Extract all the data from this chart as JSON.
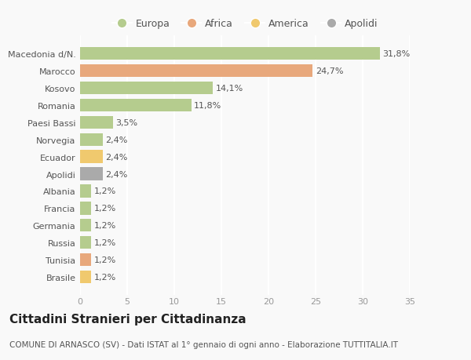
{
  "categories": [
    "Macedonia d/N.",
    "Marocco",
    "Kosovo",
    "Romania",
    "Paesi Bassi",
    "Norvegia",
    "Ecuador",
    "Apolidi",
    "Albania",
    "Francia",
    "Germania",
    "Russia",
    "Tunisia",
    "Brasile"
  ],
  "values": [
    31.8,
    24.7,
    14.1,
    11.8,
    3.5,
    2.4,
    2.4,
    2.4,
    1.2,
    1.2,
    1.2,
    1.2,
    1.2,
    1.2
  ],
  "labels": [
    "31,8%",
    "24,7%",
    "14,1%",
    "11,8%",
    "3,5%",
    "2,4%",
    "2,4%",
    "2,4%",
    "1,2%",
    "1,2%",
    "1,2%",
    "1,2%",
    "1,2%",
    "1,2%"
  ],
  "colors": [
    "#b5cc8e",
    "#e8a87c",
    "#b5cc8e",
    "#b5cc8e",
    "#b5cc8e",
    "#b5cc8e",
    "#f0c96e",
    "#aaaaaa",
    "#b5cc8e",
    "#b5cc8e",
    "#b5cc8e",
    "#b5cc8e",
    "#e8a87c",
    "#f0c96e"
  ],
  "legend": [
    {
      "label": "Europa",
      "color": "#b5cc8e"
    },
    {
      "label": "Africa",
      "color": "#e8a87c"
    },
    {
      "label": "America",
      "color": "#f0c96e"
    },
    {
      "label": "Apolidi",
      "color": "#aaaaaa"
    }
  ],
  "xlim": [
    0,
    35
  ],
  "xticks": [
    0,
    5,
    10,
    15,
    20,
    25,
    30,
    35
  ],
  "title": "Cittadini Stranieri per Cittadinanza",
  "subtitle": "COMUNE DI ARNASCO (SV) - Dati ISTAT al 1° gennaio di ogni anno - Elaborazione TUTTITALIA.IT",
  "background_color": "#f9f9f9",
  "grid_color": "#ffffff",
  "title_fontsize": 11,
  "subtitle_fontsize": 7.5,
  "label_fontsize": 8,
  "tick_fontsize": 8,
  "legend_fontsize": 9
}
